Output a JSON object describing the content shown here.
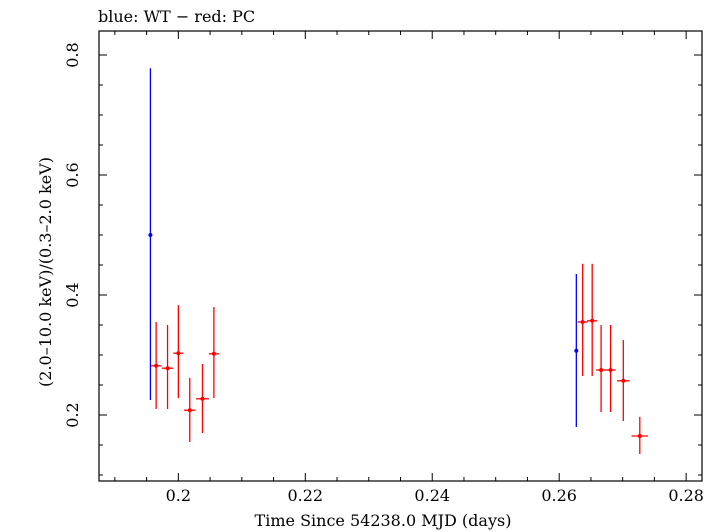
{
  "chart_data": {
    "type": "scatter",
    "title": "blue: WT − red: PC",
    "xlabel": "Time Since 54238.0 MJD (days)",
    "ylabel": "(2.0–10.0 keV)/(0.3–2.0 keV)",
    "xlim": [
      0.1875,
      0.2825
    ],
    "ylim": [
      0.09,
      0.84
    ],
    "xticks": [
      0.2,
      0.22,
      0.24,
      0.26,
      0.28
    ],
    "xtick_labels": [
      "0.2",
      "0.22",
      "0.24",
      "0.26",
      "0.28"
    ],
    "yticks": [
      0.2,
      0.4,
      0.6,
      0.8
    ],
    "ytick_labels": [
      "0.2",
      "0.4",
      "0.6",
      "0.8"
    ],
    "grid": false,
    "series": [
      {
        "color": "#0000ff",
        "points": [
          {
            "x": 0.1956,
            "y": 0.5,
            "xerr": 0.0001,
            "yerr_low": 0.225,
            "yerr_high": 0.778
          },
          {
            "x": 0.2627,
            "y": 0.307,
            "xerr": 0.0001,
            "yerr_low": 0.18,
            "yerr_high": 0.435
          }
        ]
      },
      {
        "color": "#ff0000",
        "points": [
          {
            "x": 0.1965,
            "y": 0.282,
            "xerr": 0.0008,
            "yerr_low": 0.21,
            "yerr_high": 0.355
          },
          {
            "x": 0.1983,
            "y": 0.278,
            "xerr": 0.0009,
            "yerr_low": 0.21,
            "yerr_high": 0.35
          },
          {
            "x": 0.2,
            "y": 0.303,
            "xerr": 0.0008,
            "yerr_low": 0.228,
            "yerr_high": 0.383
          },
          {
            "x": 0.2018,
            "y": 0.208,
            "xerr": 0.0009,
            "yerr_low": 0.155,
            "yerr_high": 0.262
          },
          {
            "x": 0.2038,
            "y": 0.227,
            "xerr": 0.001,
            "yerr_low": 0.17,
            "yerr_high": 0.285
          },
          {
            "x": 0.2056,
            "y": 0.302,
            "xerr": 0.0008,
            "yerr_low": 0.228,
            "yerr_high": 0.38
          },
          {
            "x": 0.2637,
            "y": 0.355,
            "xerr": 0.0008,
            "yerr_low": 0.265,
            "yerr_high": 0.452
          },
          {
            "x": 0.2652,
            "y": 0.357,
            "xerr": 0.0008,
            "yerr_low": 0.265,
            "yerr_high": 0.452
          },
          {
            "x": 0.2666,
            "y": 0.275,
            "xerr": 0.0008,
            "yerr_low": 0.205,
            "yerr_high": 0.35
          },
          {
            "x": 0.2681,
            "y": 0.275,
            "xerr": 0.0008,
            "yerr_low": 0.205,
            "yerr_high": 0.35
          },
          {
            "x": 0.2701,
            "y": 0.257,
            "xerr": 0.001,
            "yerr_low": 0.19,
            "yerr_high": 0.325
          },
          {
            "x": 0.2727,
            "y": 0.165,
            "xerr": 0.0013,
            "yerr_low": 0.135,
            "yerr_high": 0.197
          }
        ]
      }
    ]
  }
}
